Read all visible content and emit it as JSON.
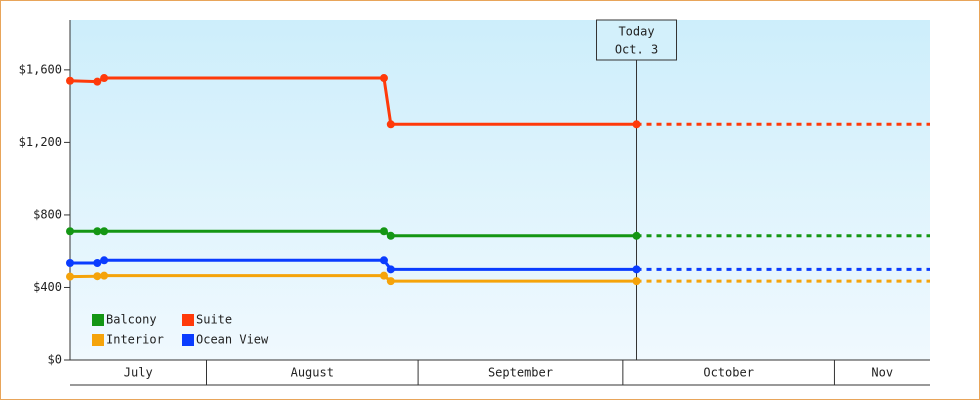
{
  "chart_data": {
    "type": "line",
    "x": [
      "07-12",
      "07-16",
      "07-17",
      "08-27",
      "08-28",
      "10-03"
    ],
    "series": [
      {
        "name": "Balcony",
        "color": "#149614",
        "values": [
          710,
          710,
          710,
          710,
          685,
          685
        ]
      },
      {
        "name": "Suite",
        "color": "#ff3a0a",
        "values": [
          1540,
          1535,
          1555,
          1555,
          1300,
          1300
        ]
      },
      {
        "name": "Interior",
        "color": "#f5a30a",
        "values": [
          460,
          462,
          465,
          465,
          435,
          435
        ]
      },
      {
        "name": "Ocean View",
        "color": "#0a3cff",
        "values": [
          535,
          535,
          550,
          550,
          500,
          500
        ]
      }
    ],
    "xlim": [
      "07-12",
      "11-15"
    ],
    "ylim": [
      0,
      1875
    ],
    "yticks": [
      {
        "value": 0,
        "label": "$0"
      },
      {
        "value": 400,
        "label": "$400"
      },
      {
        "value": 800,
        "label": "$800"
      },
      {
        "value": 1200,
        "label": "$1,200"
      },
      {
        "value": 1600,
        "label": "$1,600"
      }
    ],
    "month_labels": [
      "July",
      "August",
      "September",
      "October",
      "Nov"
    ],
    "month_starts": [
      "07-01",
      "08-01",
      "09-01",
      "10-01",
      "11-01"
    ],
    "annotation": {
      "x": "10-03",
      "lines": [
        "Today",
        "Oct. 3"
      ]
    },
    "legend": "lower left",
    "grid": false
  }
}
